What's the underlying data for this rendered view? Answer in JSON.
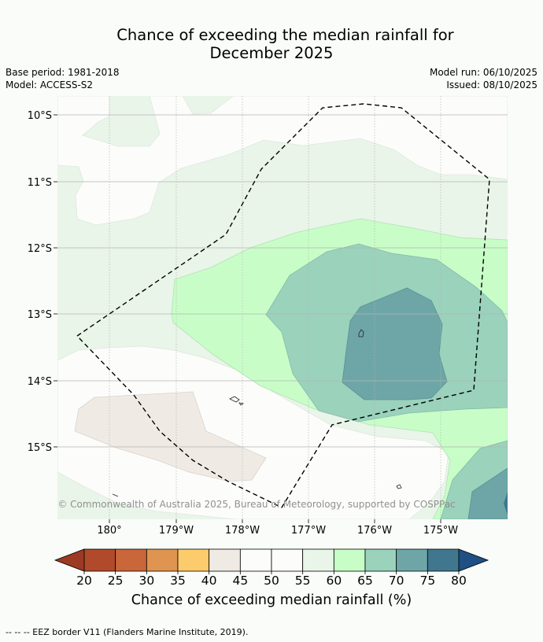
{
  "title_line1": "Chance of exceeding the median rainfall for",
  "title_line2": "December 2025",
  "base_period": "Base period: 1981-2018",
  "model": "Model: ACCESS-S2",
  "model_run": "Model run: 06/10/2025",
  "issued": "Issued: 08/10/2025",
  "map": {
    "lat_labels": [
      "10°S",
      "11°S",
      "12°S",
      "13°S",
      "14°S",
      "15°S"
    ],
    "lon_labels": [
      "180°",
      "179°W",
      "178°W",
      "177°W",
      "176°W",
      "175°W"
    ],
    "copyright": "© Commonwealth of Australia 2025, Bureau of Meteorology, supported by COSPPac"
  },
  "colorbar": {
    "ticks": [
      "20",
      "25",
      "30",
      "35",
      "40",
      "45",
      "50",
      "55",
      "60",
      "65",
      "70",
      "75",
      "80"
    ],
    "colors": [
      "#b04a2a",
      "#c9663a",
      "#df9450",
      "#fccb6b",
      "#efebe4",
      "#fcfdfb",
      "#fcfdfb",
      "#e9f5e9",
      "#c8fdc8",
      "#9ad2bc",
      "#6ea6a7",
      "#40778f"
    ],
    "low_extend_color": "#9c3a24",
    "high_extend_color": "#1f4f85",
    "label": "Chance of exceeding median rainfall (%)"
  },
  "footer": "--  --  -- EEZ border V11 (Flanders Marine Institute, 2019)."
}
